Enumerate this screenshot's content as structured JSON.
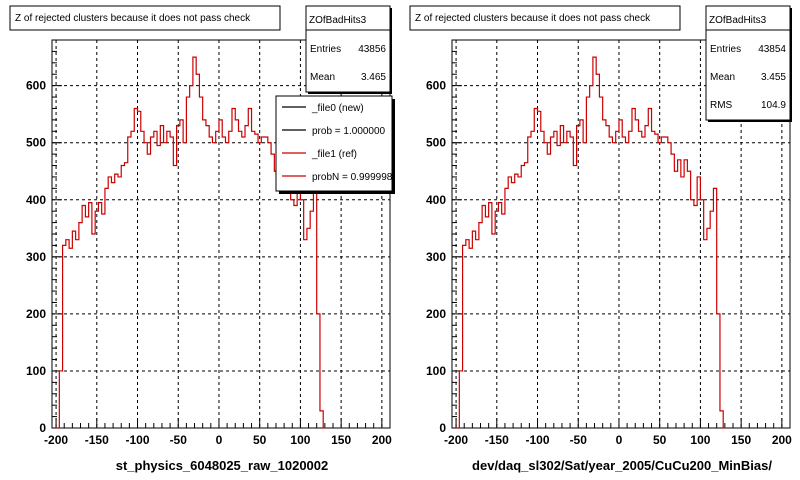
{
  "chart_data": [
    {
      "type": "line",
      "title": "Z of rejected clusters  because it does not pass check",
      "xlabel": "st_physics_6048025_raw_1020002",
      "ylabel": "",
      "xlim": [
        -205,
        210
      ],
      "ylim": [
        0,
        680
      ],
      "xticks": [
        -200,
        -150,
        -100,
        -50,
        0,
        50,
        100,
        150,
        200
      ],
      "yticks": [
        0,
        100,
        200,
        300,
        400,
        500,
        600
      ],
      "grid": true,
      "stats": {
        "name": "ZOfBadHits3",
        "rows": [
          {
            "label": "Entries",
            "value": "43856"
          },
          {
            "label": "Mean",
            "value": "3.465"
          }
        ]
      },
      "legend": {
        "placement": "top-right",
        "entries": [
          {
            "label": "_file0 (new)",
            "color": "#000000"
          },
          {
            "label": "prob = 1.000000",
            "color": "#000000"
          },
          {
            "label": "_file1 (ref)",
            "color": "#cc0000"
          },
          {
            "label": "probN = 0.999998",
            "color": "#cc0000"
          }
        ]
      },
      "series": [
        {
          "color": "#cc0000",
          "x0": -200,
          "bin_width": 4,
          "values": [
            0,
            100,
            320,
            330,
            315,
            345,
            330,
            360,
            390,
            370,
            395,
            340,
            380,
            395,
            375,
            420,
            440,
            430,
            445,
            440,
            460,
            465,
            510,
            520,
            560,
            555,
            520,
            500,
            480,
            510,
            520,
            495,
            530,
            500,
            520,
            510,
            460,
            530,
            540,
            500,
            580,
            600,
            650,
            620,
            580,
            540,
            530,
            510,
            500,
            520,
            540,
            510,
            500,
            520,
            560,
            540,
            520,
            510,
            530,
            560,
            520,
            515,
            500,
            510,
            510,
            500,
            480,
            450,
            470,
            440,
            470,
            450,
            400,
            390,
            440,
            400,
            330,
            350,
            380,
            420,
            200,
            30,
            0
          ]
        }
      ]
    },
    {
      "type": "line",
      "title": "Z of rejected clusters  because it does not pass check",
      "xlabel": "dev/daq_sl302/Sat/year_2005/CuCu200_MinBias/",
      "ylabel": "",
      "xlim": [
        -205,
        210
      ],
      "ylim": [
        0,
        680
      ],
      "xticks": [
        -200,
        -150,
        -100,
        -50,
        0,
        50,
        100,
        150,
        200
      ],
      "yticks": [
        0,
        100,
        200,
        300,
        400,
        500,
        600
      ],
      "grid": true,
      "stats": {
        "name": "ZOfBadHits3",
        "rows": [
          {
            "label": "Entries",
            "value": "43854"
          },
          {
            "label": "Mean",
            "value": "3.455"
          },
          {
            "label": "RMS",
            "value": "104.9"
          }
        ]
      },
      "series": [
        {
          "color": "#cc0000",
          "x0": -200,
          "bin_width": 4,
          "values": [
            0,
            100,
            320,
            330,
            315,
            345,
            330,
            360,
            390,
            370,
            395,
            340,
            380,
            395,
            375,
            420,
            440,
            430,
            445,
            440,
            460,
            465,
            510,
            520,
            560,
            555,
            520,
            500,
            480,
            510,
            520,
            495,
            530,
            500,
            520,
            510,
            460,
            530,
            540,
            500,
            580,
            600,
            650,
            620,
            580,
            540,
            530,
            510,
            500,
            520,
            540,
            510,
            500,
            520,
            560,
            540,
            520,
            510,
            530,
            560,
            520,
            515,
            500,
            510,
            510,
            500,
            480,
            450,
            470,
            440,
            470,
            450,
            400,
            390,
            440,
            400,
            330,
            350,
            380,
            420,
            200,
            30,
            0
          ]
        }
      ]
    }
  ]
}
